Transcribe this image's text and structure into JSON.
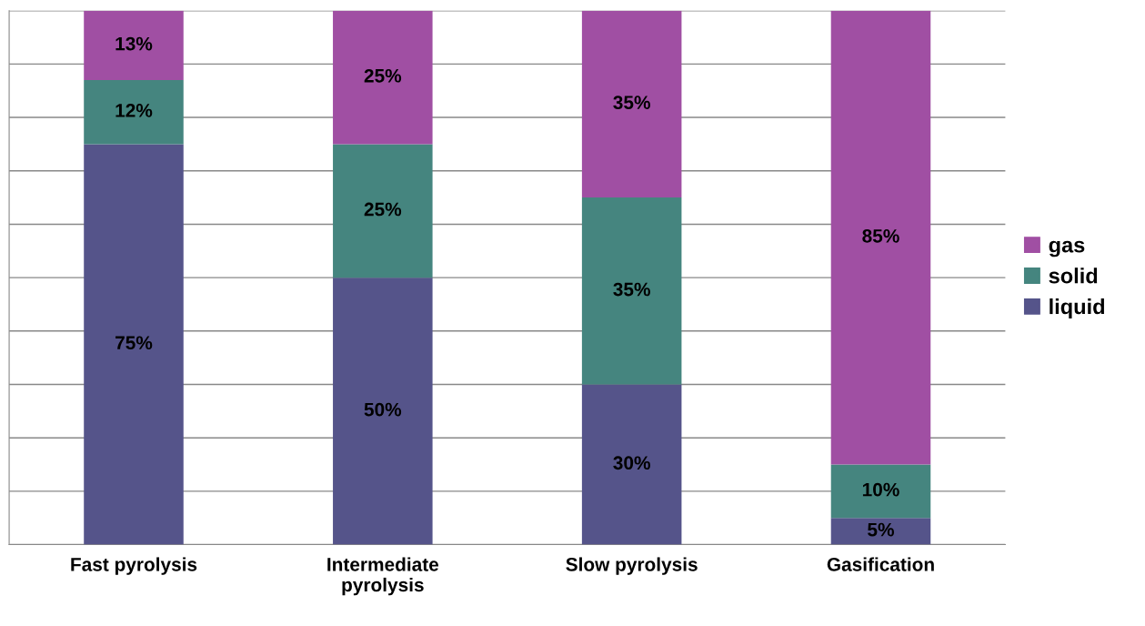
{
  "chart_data": {
    "type": "bar",
    "stacked": true,
    "categories": [
      "Fast pyrolysis",
      "Intermediate\npyrolysis",
      "Slow pyrolysis",
      "Gasification"
    ],
    "series": [
      {
        "name": "liquid",
        "color": "#55548a",
        "values": [
          75,
          50,
          30,
          5
        ],
        "value_labels": [
          "75%",
          "50%",
          "30%",
          "5%"
        ]
      },
      {
        "name": "solid",
        "color": "#45857f",
        "values": [
          12,
          25,
          35,
          10
        ],
        "value_labels": [
          "12%",
          "25%",
          "35%",
          "10%"
        ]
      },
      {
        "name": "gas",
        "color": "#a04fa3",
        "values": [
          13,
          25,
          35,
          85
        ],
        "value_labels": [
          "13%",
          "25%",
          "35%",
          "85%"
        ]
      }
    ],
    "ylim": [
      0,
      100
    ],
    "yticks": [
      {
        "value": 0,
        "label": null
      },
      {
        "value": 10,
        "label": null
      },
      {
        "value": 20,
        "label": null
      },
      {
        "value": 30,
        "label": null
      },
      {
        "value": 40,
        "label": null
      },
      {
        "value": 50,
        "label": null
      },
      {
        "value": 60,
        "label": null
      },
      {
        "value": 70,
        "label": null
      },
      {
        "value": 80,
        "label": null
      },
      {
        "value": 90,
        "label": null
      },
      {
        "value": 100,
        "label": null
      }
    ],
    "grid": "y",
    "legend": "right",
    "tick_labels": "x"
  }
}
